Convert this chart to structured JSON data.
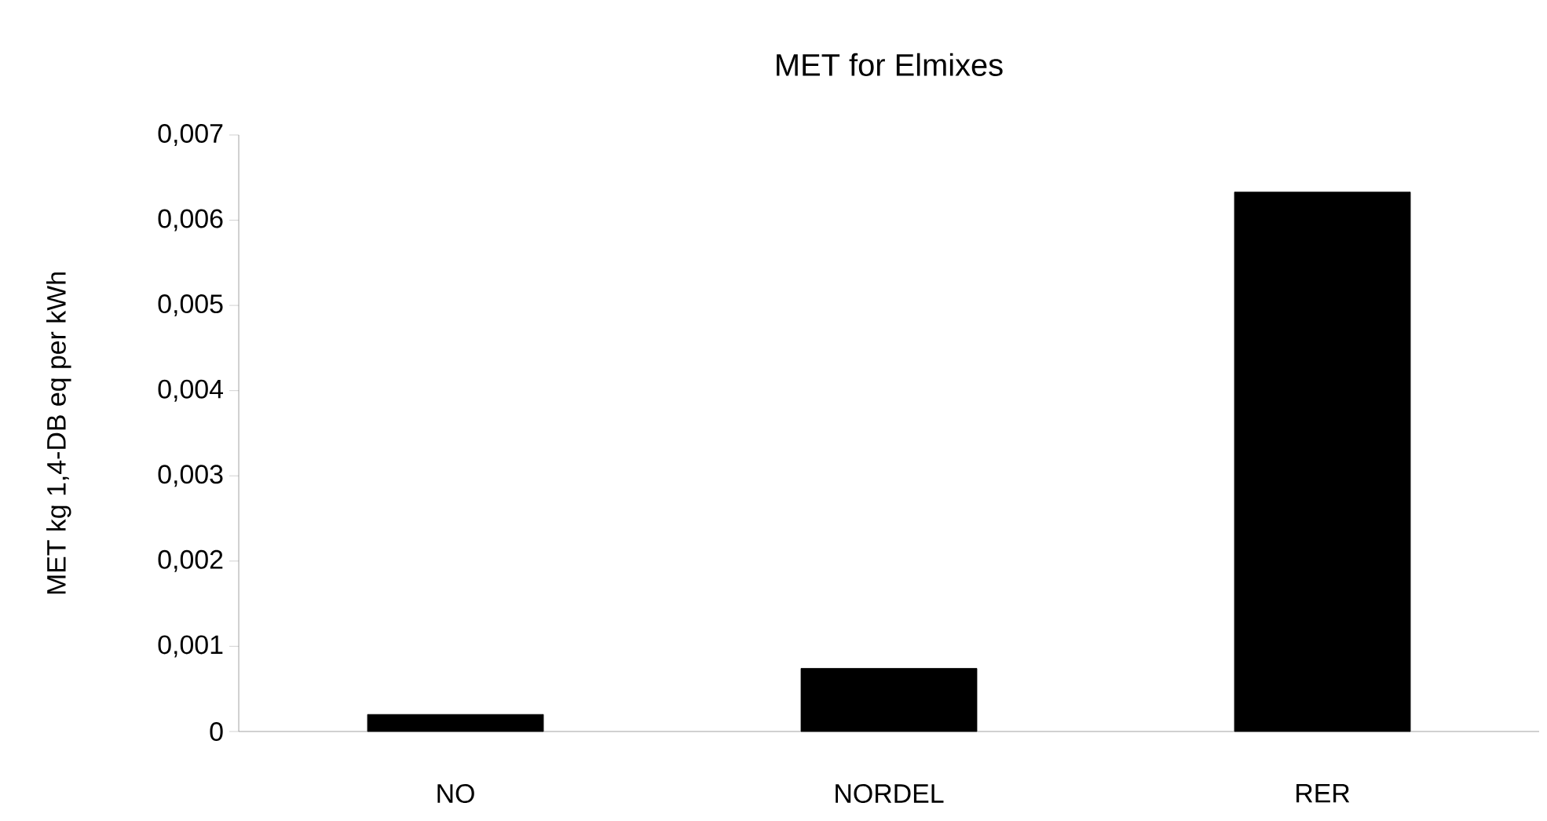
{
  "chart_data": {
    "type": "bar",
    "title": "MET for Elmixes",
    "ylabel": "MET kg 1,4-DB eq per kWh",
    "categories": [
      "NO",
      "NORDEL",
      "RER"
    ],
    "values": [
      0.0002,
      0.00074,
      0.00633
    ],
    "color": "#000000",
    "ylim": [
      0,
      0.007
    ],
    "yticks": [
      0,
      {
        "value": 0.001,
        "label": "0,001"
      },
      {
        "value": 0.002,
        "label": "0,002"
      },
      {
        "value": 0.003,
        "label": "0,003"
      },
      {
        "value": 0.004,
        "label": "0,004"
      },
      {
        "value": 0.005,
        "label": "0,005"
      },
      {
        "value": 0.006,
        "label": "0,006"
      },
      {
        "value": 0.007,
        "label": "0,007"
      }
    ],
    "grid": false
  }
}
